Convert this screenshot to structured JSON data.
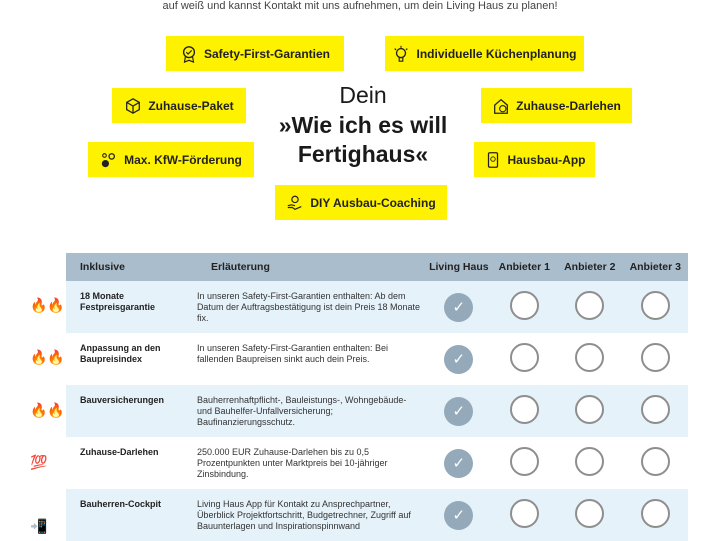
{
  "intro": "auf weiß und kannst Kontakt mit uns aufnehmen, um dein Living Haus zu planen!",
  "badges": [
    {
      "label": "Safety-First-Garantien",
      "icon": "award-icon"
    },
    {
      "label": "Individuelle Küchenplanung",
      "icon": "lightbulb-icon"
    },
    {
      "label": "Zuhause-Paket",
      "icon": "box-icon"
    },
    {
      "label": "Zuhause-Darlehen",
      "icon": "house-euro-icon"
    },
    {
      "label": "Max. KfW-Förderung",
      "icon": "coins-icon"
    },
    {
      "label": "Hausbau-App",
      "icon": "smartphone-icon"
    },
    {
      "label": "DIY Ausbau-Coaching",
      "icon": "hand-lightbulb-icon"
    }
  ],
  "title": {
    "line1": "Dein",
    "line2": "»Wie ich es will",
    "line3": "Fertighaus«"
  },
  "table": {
    "headers": [
      "Inklusive",
      "Erläuterung",
      "Living Haus",
      "Anbieter 1",
      "Anbieter 2",
      "Anbieter 3"
    ],
    "rows": [
      {
        "emoji": "🔥🔥",
        "feature": "18 Monate Festpreisgarantie",
        "desc": "In unseren Safety-First-Garantien enthalten: Ab dem Datum der Auftragsbestätigung ist dein Preis 18 Monate fix.",
        "checks": [
          true,
          false,
          false,
          false
        ]
      },
      {
        "emoji": "🔥🔥",
        "feature": "Anpassung an den Baupreisindex",
        "desc": "In unseren Safety-First-Garantien enthalten: Bei fallenden Baupreisen sinkt auch dein Preis.",
        "checks": [
          true,
          false,
          false,
          false
        ]
      },
      {
        "emoji": "🔥🔥",
        "feature": "Bauversicherungen",
        "desc": "Bauherrenhaftpflicht-, Bauleistungs-, Wohngebäude- und Bauhelfer-Unfallversicherung; Baufinanzierungsschutz.",
        "checks": [
          true,
          false,
          false,
          false
        ]
      },
      {
        "emoji": "💯",
        "feature": "Zuhause-Darlehen",
        "desc": "250.000 EUR Zuhause-Darlehen bis zu 0,5 Prozentpunkten unter Marktpreis bei 10-jähriger Zinsbindung.",
        "checks": [
          true,
          false,
          false,
          false
        ]
      },
      {
        "emoji": "📲",
        "feature": "Bauherren-Cockpit",
        "desc": "Living Haus App für Kontakt zu Ansprechpartner, Überblick Projektfortschritt, Budgetrechner, Zugriff auf Bauunterlagen und Inspirationspinnwand",
        "checks": [
          true,
          false,
          false,
          false
        ]
      }
    ]
  },
  "colors": {
    "badge": "#fff200",
    "header": "#aabdcc",
    "row_alt": "#e6f2fa",
    "check": "#94a9b9"
  }
}
